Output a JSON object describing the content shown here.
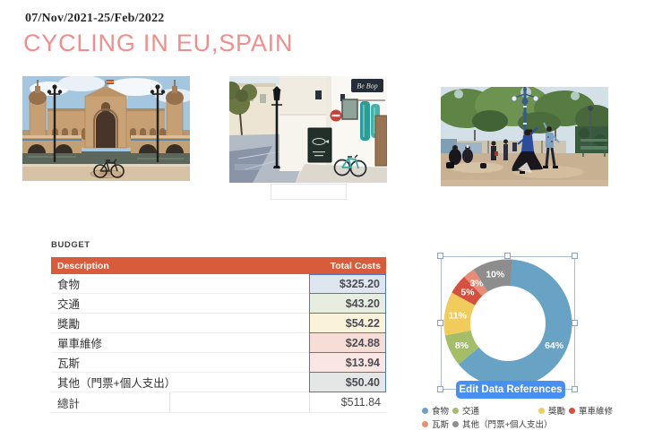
{
  "header": {
    "date_range": "07/Nov/2021-25/Feb/2022",
    "title": "CYCLING IN EU,SPAIN",
    "title_color": "#EF8F8D"
  },
  "photos": {
    "street_sign_text": "Be Bop"
  },
  "budget": {
    "section_label": "BUDGET",
    "table": {
      "header": {
        "description": "Description",
        "total_costs": "Total Costs",
        "bg": "#D85C3B"
      },
      "rows": [
        {
          "label": "食物",
          "value": "$325.20",
          "bg": "#DEE7F0"
        },
        {
          "label": "交通",
          "value": "$43.20",
          "bg": "#E8EEDF"
        },
        {
          "label": "獎勵",
          "value": "$54.22",
          "bg": "#FBF3D9"
        },
        {
          "label": "單車維修",
          "value": "$24.88",
          "bg": "#F6DED6"
        },
        {
          "label": "瓦斯",
          "value": "$13.94",
          "bg": "#FAE6E2"
        },
        {
          "label": "其他（門票+個人支出）",
          "value": "$50.40",
          "bg": "#E5E7E6"
        }
      ],
      "total": {
        "label": "總計",
        "value": "$511.84"
      }
    }
  },
  "chart_data": {
    "type": "pie",
    "subtype": "donut",
    "labels": [
      "食物",
      "交通",
      "獎勵",
      "單車維修",
      "瓦斯",
      "其他（門票+個人支出）"
    ],
    "values": [
      325.2,
      43.2,
      54.22,
      24.88,
      13.94,
      50.4
    ],
    "values_pct": [
      64,
      8,
      11,
      5,
      3,
      10
    ],
    "data_labels": [
      "64%",
      "8%",
      "11%",
      "5%",
      "3%",
      "10%"
    ],
    "colors": [
      "#68A3C5",
      "#A4BE68",
      "#F1CB5C",
      "#D5503F",
      "#E78D77",
      "#8D8D8D"
    ],
    "start_angle_deg": 0,
    "direction": "clockwise",
    "legend_position": "bottom-right"
  },
  "chart_ui": {
    "edit_button_label": "Edit Data References",
    "edit_button_color": "#478FF0",
    "chart_selected": true
  }
}
